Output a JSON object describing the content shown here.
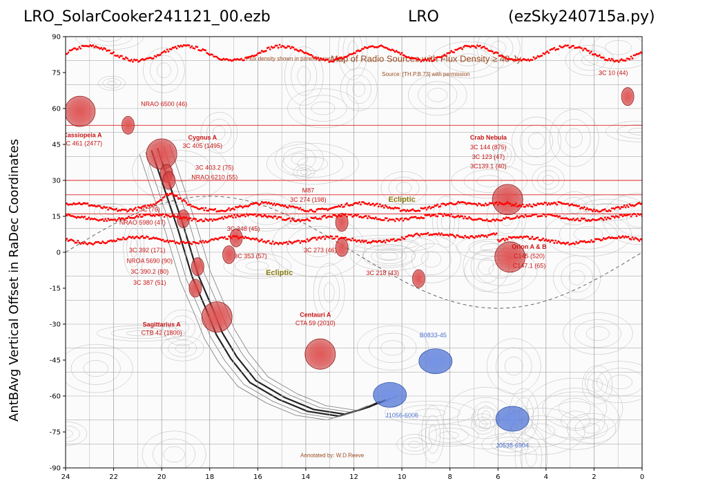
{
  "title": {
    "left": "LRO_SolarCooker241121_00.ezb",
    "center": "LRO",
    "right": "(ezSky240715a.py)"
  },
  "chart_data": {
    "type": "scatter",
    "title": "LRO_SolarCooker241121_00.ezb          LRO          (ezSky240715a.py)",
    "ylabel": "AntBAvg Vertical Offset in RaDec Coordinates",
    "xlabel": "",
    "xlim": [
      24,
      0
    ],
    "ylim": [
      -90,
      90
    ],
    "x_ticks": [
      24,
      22,
      20,
      18,
      16,
      14,
      12,
      10,
      8,
      6,
      4,
      2,
      0
    ],
    "y_ticks": [
      90,
      75,
      60,
      45,
      30,
      15,
      0,
      -15,
      -30,
      -45,
      -60,
      -75,
      -90
    ],
    "horizontal_lines_dec": [
      53,
      30,
      24,
      16
    ],
    "background_map": {
      "title": "Map of Radio Sources with Flux Density ≥ 40 Jy",
      "source_note": "Source: [TH.P.B.73] with permission",
      "flux_note": "Flux density shown in parentheses (Jy)",
      "annotated_by": "Annotated by: W.D.Reeve",
      "ecliptic_label": "Ecliptic",
      "red_sources": [
        {
          "name": "Cassiopeia A",
          "ra": 23.4,
          "dec": 58.8
        },
        {
          "name": "3C 461",
          "ra": 21.4,
          "dec": 53.0
        },
        {
          "name": "Cygnus A",
          "ra": 20.0,
          "dec": 41.0
        },
        {
          "name": "3C 403.2",
          "ra": 19.8,
          "dec": 33.0
        },
        {
          "name": "NRAO 6210",
          "ra": 19.7,
          "dec": 30.0
        },
        {
          "name": "NRAO 5980",
          "ra": 19.1,
          "dec": 14.0
        },
        {
          "name": "3C 348",
          "ra": 16.9,
          "dec": 6.0
        },
        {
          "name": "3C 392",
          "ra": 17.2,
          "dec": -1.0
        },
        {
          "name": "NRAO 5690",
          "ra": 18.5,
          "dec": -6.0
        },
        {
          "name": "3C 390.2",
          "ra": 18.6,
          "dec": -15.0
        },
        {
          "name": "Sagittarius A",
          "ra": 17.7,
          "dec": -27.0
        },
        {
          "name": "M87",
          "ra": 12.5,
          "dec": 12.5
        },
        {
          "name": "3C 273",
          "ra": 12.5,
          "dec": 2.0
        },
        {
          "name": "3C 218",
          "ra": 9.3,
          "dec": -11.0
        },
        {
          "name": "Centauri A",
          "ra": 13.4,
          "dec": -42.5
        },
        {
          "name": "Crab Nebula",
          "ra": 5.6,
          "dec": 22.0
        },
        {
          "name": "Orion A & B",
          "ra": 5.5,
          "dec": -2.0
        },
        {
          "name": "3C 10",
          "ra": 0.6,
          "dec": 65.0
        }
      ],
      "blue_sources": [
        {
          "name": "B0833-45",
          "ra": 8.6,
          "dec": -45.5
        },
        {
          "name": "J1056-6006",
          "ra": 10.5,
          "dec": -59.5
        },
        {
          "name": "J0538-6904",
          "ra": 5.4,
          "dec": -69.5
        }
      ],
      "labels": [
        {
          "text": "Cassiopeia A",
          "ra": 23.3,
          "dec": 48.0,
          "style": "bold"
        },
        {
          "text": "3C 461 (2477)",
          "ra": 23.3,
          "dec": 44.5,
          "style": "normal"
        },
        {
          "text": "NRAO 6500 (46)",
          "ra": 19.9,
          "dec": 61.0,
          "style": "normal"
        },
        {
          "text": "Cygnus A",
          "ra": 18.3,
          "dec": 47.0,
          "style": "bold"
        },
        {
          "text": "3C 405 (1495)",
          "ra": 18.3,
          "dec": 43.5,
          "style": "normal"
        },
        {
          "text": "3C 403.2 (75)",
          "ra": 17.8,
          "dec": 34.5,
          "style": "normal"
        },
        {
          "text": "NRAO 6210 (55)",
          "ra": 17.8,
          "dec": 30.5,
          "style": "normal"
        },
        {
          "text": "3C (76)",
          "ra": 20.5,
          "dec": 17.0,
          "style": "normal"
        },
        {
          "text": "NRAO 5980 (47)",
          "ra": 20.8,
          "dec": 11.5,
          "style": "normal"
        },
        {
          "text": "3C 348 (45)",
          "ra": 16.6,
          "dec": 9.0,
          "style": "normal"
        },
        {
          "text": "M87",
          "ra": 13.9,
          "dec": 25.0,
          "style": "normal"
        },
        {
          "text": "3C 274 (198)",
          "ra": 13.9,
          "dec": 21.0,
          "style": "normal"
        },
        {
          "text": "3C 273 (46)",
          "ra": 13.4,
          "dec": 0.0,
          "style": "normal"
        },
        {
          "text": "3C 353 (57)",
          "ra": 16.3,
          "dec": -2.5,
          "style": "normal"
        },
        {
          "text": "3C 392 (171)",
          "ra": 20.6,
          "dec": 0.0,
          "style": "normal"
        },
        {
          "text": "NROA 5690 (90)",
          "ra": 20.5,
          "dec": -4.5,
          "style": "normal"
        },
        {
          "text": "3C 390.2 (80)",
          "ra": 20.5,
          "dec": -9.0,
          "style": "normal"
        },
        {
          "text": "3C 387 (51)",
          "ra": 20.5,
          "dec": -13.5,
          "style": "normal"
        },
        {
          "text": "3C 218 (43)",
          "ra": 10.8,
          "dec": -9.5,
          "style": "normal"
        },
        {
          "text": "Sagittarius A",
          "ra": 20.0,
          "dec": -31.0,
          "style": "bold"
        },
        {
          "text": "CTB 42 (1800)",
          "ra": 20.0,
          "dec": -34.5,
          "style": "normal"
        },
        {
          "text": "Centauri A",
          "ra": 13.6,
          "dec": -27.0,
          "style": "bold"
        },
        {
          "text": "CTA 59 (2010)",
          "ra": 13.6,
          "dec": -30.5,
          "style": "normal"
        },
        {
          "text": "Crab Nebula",
          "ra": 6.4,
          "dec": 47.0,
          "style": "bold"
        },
        {
          "text": "3C 144 (875)",
          "ra": 6.4,
          "dec": 43.0,
          "style": "normal"
        },
        {
          "text": "3C 123 (47)",
          "ra": 6.4,
          "dec": 39.0,
          "style": "normal"
        },
        {
          "text": "3C139.1 (40)",
          "ra": 6.4,
          "dec": 35.0,
          "style": "normal"
        },
        {
          "text": "Orion A & B",
          "ra": 4.7,
          "dec": 1.5,
          "style": "bold"
        },
        {
          "text": "C145 (520)",
          "ra": 4.7,
          "dec": -2.5,
          "style": "normal"
        },
        {
          "text": "C147.1 (65)",
          "ra": 4.7,
          "dec": -6.5,
          "style": "normal"
        },
        {
          "text": "3C 10 (44)",
          "ra": 1.2,
          "dec": 74.0,
          "style": "normal"
        },
        {
          "text": "B0833-45",
          "ra": 8.7,
          "dec": -35.5,
          "style": "blue"
        },
        {
          "text": "J1056-6006",
          "ra": 10.0,
          "dec": -69.0,
          "style": "blue"
        },
        {
          "text": "J0538-6904",
          "ra": 5.4,
          "dec": -81.5,
          "style": "blue"
        }
      ]
    },
    "series": [
      {
        "traces": [
          {
            "ra_start": 24,
            "ra_end": 0,
            "dec_base": 83.0,
            "dec_amp": 3.0
          },
          {
            "ra_start": 24,
            "ra_end": 0,
            "dec_base": 19.0,
            "dec_amp": 1.5
          },
          {
            "ra_start": 24,
            "ra_end": 0,
            "dec_base": 14.5,
            "dec_amp": 1.0
          },
          {
            "ra_start": 24,
            "ra_end": 0,
            "dec_base": 5.0,
            "dec_amp": 1.2
          }
        ],
        "color": "#ff0000"
      }
    ]
  }
}
